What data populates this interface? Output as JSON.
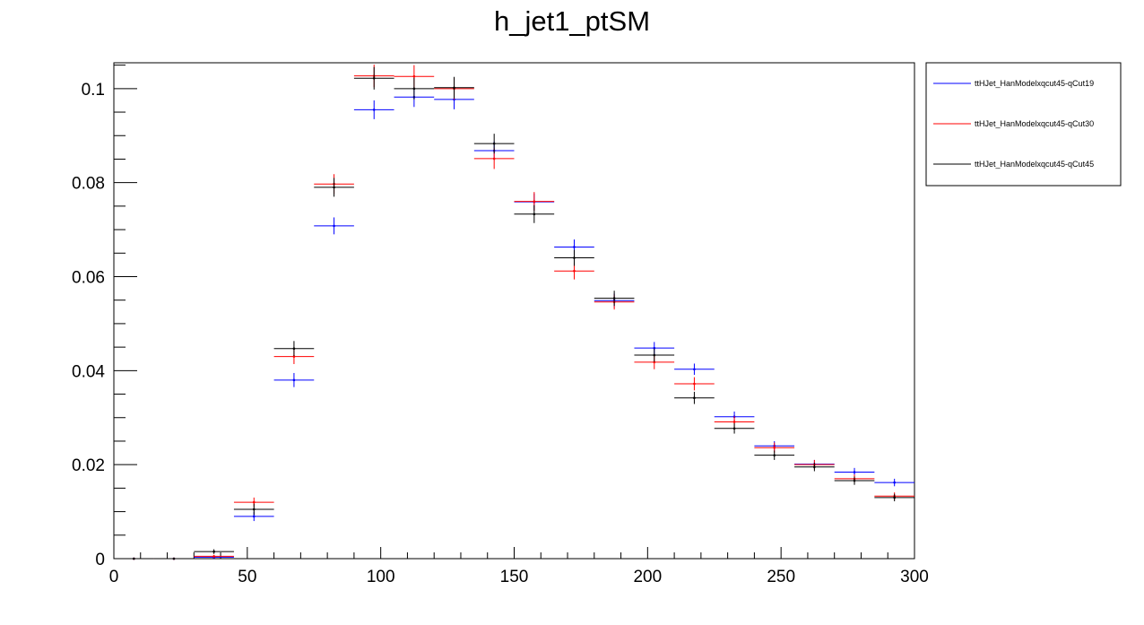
{
  "chart_data": {
    "type": "scatter",
    "title": "h_jet1_ptSM",
    "xlabel": "",
    "ylabel": "",
    "xlim": [
      0,
      300
    ],
    "ylim": [
      0,
      0.1055
    ],
    "x_ticks": [
      0,
      50,
      100,
      150,
      200,
      250,
      300
    ],
    "x_tick_labels": [
      "0",
      "50",
      "100",
      "150",
      "200",
      "250",
      "300"
    ],
    "y_ticks": [
      0,
      0.02,
      0.04,
      0.06,
      0.08,
      0.1
    ],
    "y_tick_labels": [
      "0",
      "0.02",
      "0.04",
      "0.06",
      "0.08",
      "0.1"
    ],
    "grid": false,
    "legend_position": "top-right outside plot",
    "bin_edges": [
      0,
      15,
      30,
      45,
      60,
      75,
      90,
      105,
      120,
      135,
      150,
      165,
      180,
      195,
      210,
      225,
      240,
      255,
      270,
      285,
      300
    ],
    "bin_centers": [
      7.5,
      22.5,
      37.5,
      52.5,
      67.5,
      82.5,
      97.5,
      112.5,
      127.5,
      142.5,
      157.5,
      172.5,
      187.5,
      202.5,
      217.5,
      232.5,
      247.5,
      262.5,
      277.5,
      292.5
    ],
    "series": [
      {
        "name": "ttHJet_HanModelxqcut45-qCut19",
        "color": "#0000ff",
        "values": [
          0,
          0,
          0.0003,
          0.009,
          0.038,
          0.0708,
          0.0955,
          0.0982,
          0.0977,
          0.0868,
          0.0759,
          0.0663,
          0.0549,
          0.0448,
          0.0403,
          0.0302,
          0.024,
          0.0201,
          0.0184,
          0.0162
        ],
        "errors": [
          0,
          0,
          0.0003,
          0.001,
          0.0015,
          0.0018,
          0.002,
          0.0021,
          0.0021,
          0.002,
          0.0018,
          0.0016,
          0.0015,
          0.0013,
          0.0012,
          0.0011,
          0.001,
          0.0009,
          0.0009,
          0.0008
        ]
      },
      {
        "name": "ttHJet_HanModelxqcut45-qCut30",
        "color": "#ff0000",
        "values": [
          0,
          0,
          0.0005,
          0.012,
          0.043,
          0.0797,
          0.1027,
          0.1026,
          0.1,
          0.0851,
          0.076,
          0.0612,
          0.0546,
          0.0418,
          0.0372,
          0.0291,
          0.0236,
          0.02,
          0.017,
          0.0133
        ],
        "errors": [
          0,
          0,
          0.0003,
          0.001,
          0.0016,
          0.0021,
          0.0024,
          0.0024,
          0.0023,
          0.0022,
          0.002,
          0.0018,
          0.0016,
          0.0015,
          0.0014,
          0.0012,
          0.0011,
          0.001,
          0.0009,
          0.0008
        ]
      },
      {
        "name": "ttHJet_HanModelxqcut45-qCut45",
        "color": "#000000",
        "values": [
          0,
          0,
          0.0015,
          0.0105,
          0.0447,
          0.079,
          0.1022,
          0.1,
          0.1002,
          0.0883,
          0.0733,
          0.064,
          0.0554,
          0.0433,
          0.0342,
          0.0277,
          0.022,
          0.0195,
          0.0166,
          0.013
        ],
        "errors": [
          0,
          0,
          0.0005,
          0.0012,
          0.0016,
          0.002,
          0.0024,
          0.0023,
          0.0023,
          0.0021,
          0.0019,
          0.0017,
          0.0016,
          0.0014,
          0.0013,
          0.0011,
          0.001,
          0.0009,
          0.0009,
          0.0008
        ]
      }
    ]
  }
}
